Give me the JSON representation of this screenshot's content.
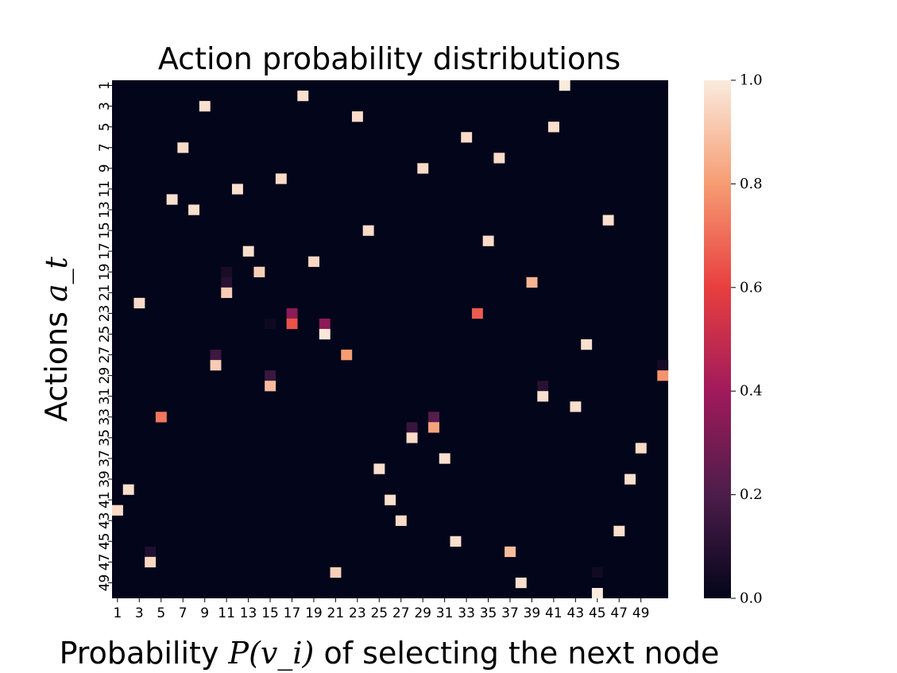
{
  "chart_data": {
    "type": "heatmap",
    "title": "Action probability distributions",
    "ylabel_text": "Actions ",
    "ylabel_math": "a_t",
    "xlabel_pre": "Probability ",
    "xlabel_math": "P(v_i)",
    "xlabel_post": " of selecting the next node",
    "n_rows": 50,
    "n_cols": 51,
    "x_tick_labels": [
      "1",
      "3",
      "5",
      "7",
      "9",
      "11",
      "13",
      "15",
      "17",
      "19",
      "21",
      "23",
      "25",
      "27",
      "29",
      "31",
      "33",
      "35",
      "37",
      "39",
      "41",
      "43",
      "45",
      "47",
      "49"
    ],
    "y_tick_labels": [
      "1",
      "3",
      "5",
      "7",
      "9",
      "11",
      "13",
      "15",
      "17",
      "19",
      "21",
      "23",
      "25",
      "27",
      "29",
      "31",
      "33",
      "35",
      "37",
      "39",
      "41",
      "43",
      "45",
      "47",
      "49"
    ],
    "colorbar": {
      "min": 0.0,
      "max": 1.0,
      "ticks": [
        "0.0",
        "0.2",
        "0.4",
        "0.6",
        "0.8",
        "1.0"
      ]
    },
    "colors": [
      "#03051a",
      "#4c1d4b",
      "#a11a5b",
      "#e83f3f",
      "#f69c73",
      "#faebdd"
    ],
    "cells": [
      {
        "row": 1,
        "col": 42,
        "value": 1.0
      },
      {
        "row": 2,
        "col": 18,
        "value": 0.97
      },
      {
        "row": 3,
        "col": 9,
        "value": 0.97
      },
      {
        "row": 4,
        "col": 23,
        "value": 0.96
      },
      {
        "row": 5,
        "col": 41,
        "value": 0.97
      },
      {
        "row": 6,
        "col": 33,
        "value": 0.96
      },
      {
        "row": 7,
        "col": 7,
        "value": 0.96
      },
      {
        "row": 8,
        "col": 36,
        "value": 0.96
      },
      {
        "row": 9,
        "col": 29,
        "value": 0.96
      },
      {
        "row": 10,
        "col": 16,
        "value": 0.96
      },
      {
        "row": 11,
        "col": 12,
        "value": 0.97
      },
      {
        "row": 12,
        "col": 6,
        "value": 0.97
      },
      {
        "row": 13,
        "col": 8,
        "value": 0.97
      },
      {
        "row": 14,
        "col": 46,
        "value": 0.97
      },
      {
        "row": 15,
        "col": 24,
        "value": 0.96
      },
      {
        "row": 16,
        "col": 35,
        "value": 0.96
      },
      {
        "row": 17,
        "col": 13,
        "value": 0.97
      },
      {
        "row": 18,
        "col": 19,
        "value": 0.95
      },
      {
        "row": 19,
        "col": 14,
        "value": 0.93
      },
      {
        "row": 19,
        "col": 11,
        "value": 0.06
      },
      {
        "row": 20,
        "col": 39,
        "value": 0.86
      },
      {
        "row": 20,
        "col": 11,
        "value": 0.1
      },
      {
        "row": 21,
        "col": 11,
        "value": 0.92
      },
      {
        "row": 22,
        "col": 3,
        "value": 0.96
      },
      {
        "row": 23,
        "col": 34,
        "value": 0.66
      },
      {
        "row": 23,
        "col": 17,
        "value": 0.35
      },
      {
        "row": 24,
        "col": 17,
        "value": 0.64
      },
      {
        "row": 24,
        "col": 20,
        "value": 0.35
      },
      {
        "row": 24,
        "col": 15,
        "value": 0.03
      },
      {
        "row": 25,
        "col": 20,
        "value": 0.99
      },
      {
        "row": 26,
        "col": 44,
        "value": 0.97
      },
      {
        "row": 27,
        "col": 10,
        "value": 0.16
      },
      {
        "row": 27,
        "col": 22,
        "value": 0.8
      },
      {
        "row": 28,
        "col": 10,
        "value": 0.92
      },
      {
        "row": 28,
        "col": 51,
        "value": 0.05
      },
      {
        "row": 29,
        "col": 51,
        "value": 0.78
      },
      {
        "row": 29,
        "col": 15,
        "value": 0.15
      },
      {
        "row": 30,
        "col": 15,
        "value": 0.88
      },
      {
        "row": 30,
        "col": 40,
        "value": 0.1
      },
      {
        "row": 31,
        "col": 40,
        "value": 0.97
      },
      {
        "row": 32,
        "col": 43,
        "value": 0.97
      },
      {
        "row": 33,
        "col": 5,
        "value": 0.72
      },
      {
        "row": 33,
        "col": 30,
        "value": 0.22
      },
      {
        "row": 34,
        "col": 30,
        "value": 0.82
      },
      {
        "row": 34,
        "col": 28,
        "value": 0.14
      },
      {
        "row": 35,
        "col": 28,
        "value": 0.96
      },
      {
        "row": 36,
        "col": 49,
        "value": 0.96
      },
      {
        "row": 37,
        "col": 31,
        "value": 0.97
      },
      {
        "row": 38,
        "col": 25,
        "value": 0.97
      },
      {
        "row": 39,
        "col": 48,
        "value": 0.97
      },
      {
        "row": 40,
        "col": 2,
        "value": 0.97
      },
      {
        "row": 41,
        "col": 26,
        "value": 0.97
      },
      {
        "row": 42,
        "col": 1,
        "value": 0.96
      },
      {
        "row": 43,
        "col": 27,
        "value": 0.96
      },
      {
        "row": 44,
        "col": 47,
        "value": 0.97
      },
      {
        "row": 45,
        "col": 32,
        "value": 0.97
      },
      {
        "row": 46,
        "col": 37,
        "value": 0.88
      },
      {
        "row": 46,
        "col": 4,
        "value": 0.08
      },
      {
        "row": 47,
        "col": 4,
        "value": 0.95
      },
      {
        "row": 48,
        "col": 21,
        "value": 0.93
      },
      {
        "row": 48,
        "col": 45,
        "value": 0.04
      },
      {
        "row": 49,
        "col": 38,
        "value": 0.97
      },
      {
        "row": 50,
        "col": 45,
        "value": 1.0
      }
    ]
  }
}
